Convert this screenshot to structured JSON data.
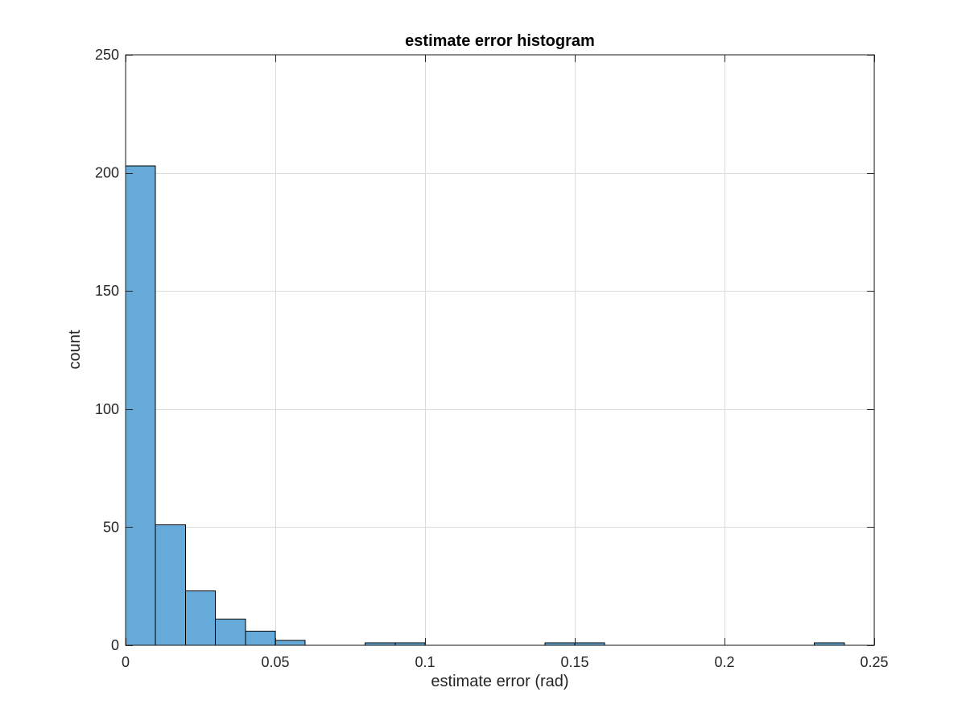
{
  "chart_data": {
    "type": "bar",
    "subtype": "histogram",
    "title": "estimate error histogram",
    "xlabel": "estimate error (rad)",
    "ylabel": "count",
    "xlim": [
      0,
      0.25
    ],
    "ylim": [
      0,
      250
    ],
    "grid": true,
    "bar_color": "#65aad8",
    "bar_edge_color": "#000000",
    "bin_width": 0.01,
    "bins": [
      {
        "start": 0.0,
        "end": 0.01,
        "count": 203
      },
      {
        "start": 0.01,
        "end": 0.02,
        "count": 51
      },
      {
        "start": 0.02,
        "end": 0.03,
        "count": 23
      },
      {
        "start": 0.03,
        "end": 0.04,
        "count": 11
      },
      {
        "start": 0.04,
        "end": 0.05,
        "count": 6
      },
      {
        "start": 0.05,
        "end": 0.06,
        "count": 2
      },
      {
        "start": 0.06,
        "end": 0.07,
        "count": 0
      },
      {
        "start": 0.07,
        "end": 0.08,
        "count": 0
      },
      {
        "start": 0.08,
        "end": 0.09,
        "count": 1
      },
      {
        "start": 0.09,
        "end": 0.1,
        "count": 1
      },
      {
        "start": 0.1,
        "end": 0.11,
        "count": 0
      },
      {
        "start": 0.11,
        "end": 0.12,
        "count": 0
      },
      {
        "start": 0.12,
        "end": 0.13,
        "count": 0
      },
      {
        "start": 0.13,
        "end": 0.14,
        "count": 0
      },
      {
        "start": 0.14,
        "end": 0.15,
        "count": 1
      },
      {
        "start": 0.15,
        "end": 0.16,
        "count": 1
      },
      {
        "start": 0.16,
        "end": 0.17,
        "count": 0
      },
      {
        "start": 0.17,
        "end": 0.18,
        "count": 0
      },
      {
        "start": 0.18,
        "end": 0.19,
        "count": 0
      },
      {
        "start": 0.19,
        "end": 0.2,
        "count": 0
      },
      {
        "start": 0.2,
        "end": 0.21,
        "count": 0
      },
      {
        "start": 0.21,
        "end": 0.22,
        "count": 0
      },
      {
        "start": 0.22,
        "end": 0.23,
        "count": 0
      },
      {
        "start": 0.23,
        "end": 0.24,
        "count": 1
      }
    ],
    "x_ticks": [
      {
        "value": 0,
        "label": "0"
      },
      {
        "value": 0.05,
        "label": "0.05"
      },
      {
        "value": 0.1,
        "label": "0.1"
      },
      {
        "value": 0.15,
        "label": "0.15"
      },
      {
        "value": 0.2,
        "label": "0.2"
      },
      {
        "value": 0.25,
        "label": "0.25"
      }
    ],
    "y_ticks": [
      {
        "value": 0,
        "label": "0"
      },
      {
        "value": 50,
        "label": "50"
      },
      {
        "value": 100,
        "label": "100"
      },
      {
        "value": 150,
        "label": "150"
      },
      {
        "value": 200,
        "label": "200"
      },
      {
        "value": 250,
        "label": "250"
      }
    ]
  }
}
